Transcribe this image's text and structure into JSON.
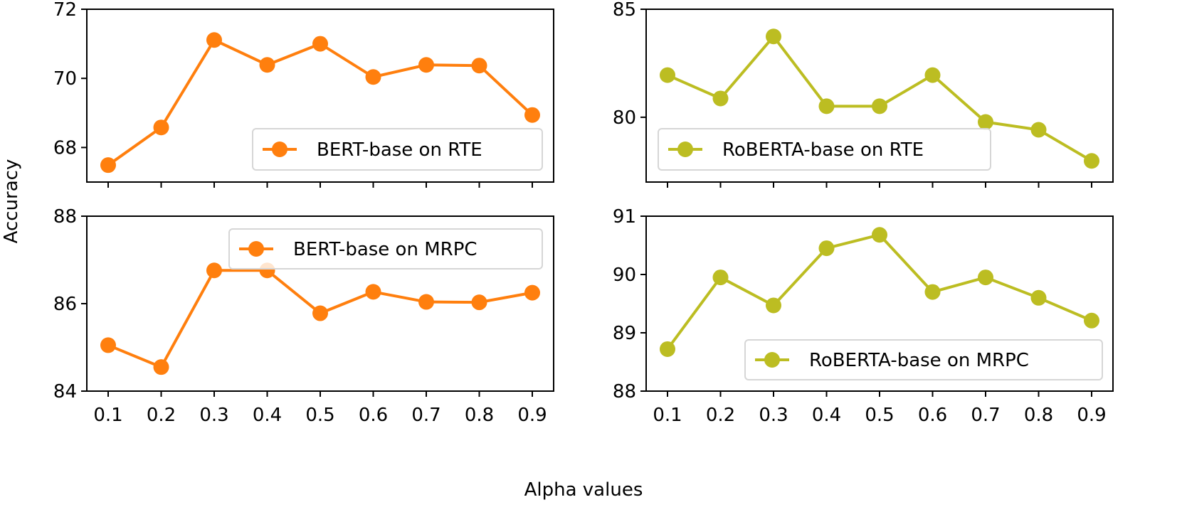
{
  "figure": {
    "xlabel": "Alpha values",
    "ylabel": "Accuracy"
  },
  "chart_data": [
    {
      "type": "line",
      "panel": "top-left",
      "series_name": "BERT-base on RTE",
      "color": "#ff7f0e",
      "x": [
        0.1,
        0.2,
        0.3,
        0.4,
        0.5,
        0.6,
        0.7,
        0.8,
        0.9
      ],
      "y": [
        67.49,
        68.58,
        71.11,
        70.39,
        71.0,
        70.04,
        70.39,
        70.37,
        68.94
      ],
      "ylim": [
        67,
        72
      ],
      "yticks": [
        "68",
        "70",
        "72"
      ],
      "ytick_values": [
        68,
        70,
        72
      ],
      "xticks": [],
      "legend": "lower-right",
      "grid": false,
      "marker": "circle"
    },
    {
      "type": "line",
      "panel": "top-right",
      "series_name": "RoBERTA-base on RTE",
      "color": "#bcbd22",
      "x": [
        0.1,
        0.2,
        0.3,
        0.4,
        0.5,
        0.6,
        0.7,
        0.8,
        0.9
      ],
      "y": [
        81.95,
        80.87,
        83.74,
        80.51,
        80.51,
        81.95,
        79.78,
        79.42,
        77.98
      ],
      "ylim": [
        77,
        85
      ],
      "yticks": [
        "80",
        "85"
      ],
      "ytick_values": [
        80,
        85
      ],
      "xticks": [],
      "legend": "lower-left",
      "grid": false,
      "marker": "circle"
    },
    {
      "type": "line",
      "panel": "bottom-left",
      "series_name": "BERT-base on MRPC",
      "color": "#ff7f0e",
      "x": [
        0.1,
        0.2,
        0.3,
        0.4,
        0.5,
        0.6,
        0.7,
        0.8,
        0.9
      ],
      "y": [
        85.05,
        84.55,
        86.76,
        86.76,
        85.78,
        86.27,
        86.04,
        86.03,
        86.25
      ],
      "ylim": [
        84,
        88
      ],
      "yticks": [
        "84",
        "86",
        "88"
      ],
      "ytick_values": [
        84,
        86,
        88
      ],
      "xticks": [
        "0.1",
        "0.2",
        "0.3",
        "0.4",
        "0.5",
        "0.6",
        "0.7",
        "0.8",
        "0.9"
      ],
      "legend": "upper-right",
      "grid": false,
      "marker": "circle"
    },
    {
      "type": "line",
      "panel": "bottom-right",
      "series_name": "RoBERTA-base on MRPC",
      "color": "#bcbd22",
      "x": [
        0.1,
        0.2,
        0.3,
        0.4,
        0.5,
        0.6,
        0.7,
        0.8,
        0.9
      ],
      "y": [
        88.72,
        89.95,
        89.47,
        90.45,
        90.68,
        89.7,
        89.95,
        89.6,
        89.21
      ],
      "ylim": [
        88,
        91
      ],
      "yticks": [
        "88",
        "89",
        "90",
        "91"
      ],
      "ytick_values": [
        88,
        89,
        90,
        91
      ],
      "xticks": [
        "0.1",
        "0.2",
        "0.3",
        "0.4",
        "0.5",
        "0.6",
        "0.7",
        "0.8",
        "0.9"
      ],
      "legend": "lower-right",
      "grid": false,
      "marker": "circle"
    }
  ]
}
